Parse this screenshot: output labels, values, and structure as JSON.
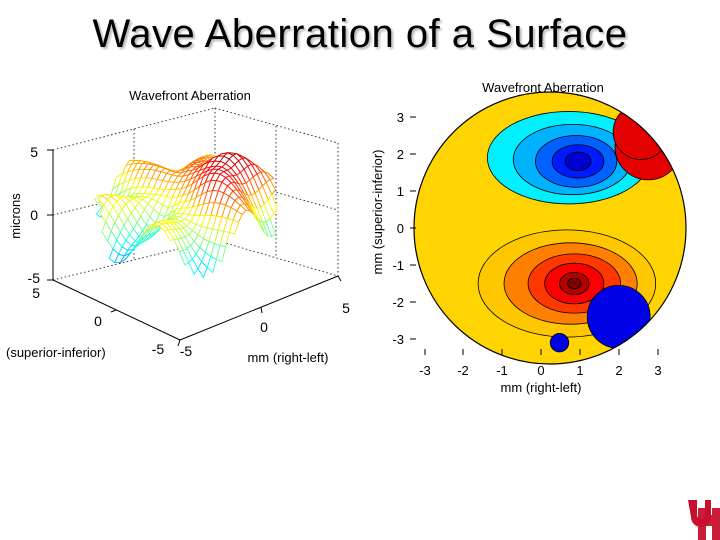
{
  "slide": {
    "title": "Wave Aberration of a Surface"
  },
  "colors": {
    "high": "#c00000",
    "mid": "#ffe000",
    "low": "#0010a0",
    "logo": "#c8102e"
  },
  "chart_data": [
    {
      "type": "surface",
      "title": "Wavefront Aberration",
      "zlabel": "microns",
      "xlabel": "mm (right-left)",
      "ylabel": "(superior-inferior)",
      "zticks": [
        "5",
        "0",
        "-5"
      ],
      "xticks": [
        "-5",
        "0",
        "5"
      ],
      "yticks": [
        "5",
        "0",
        "-5"
      ],
      "zlim": [
        -5,
        5
      ],
      "xlim": [
        -5,
        5
      ],
      "ylim": [
        -5,
        5
      ],
      "grid": true
    },
    {
      "type": "contour",
      "title": "Wavefront Aberration",
      "xlabel": "mm (right-left)",
      "ylabel": "mm (superior-inferior)",
      "xticks": [
        "-3",
        "-2",
        "-1",
        "0",
        "1",
        "2",
        "3"
      ],
      "yticks": [
        "3",
        "2",
        "1",
        "0",
        "-1",
        "-2",
        "-3"
      ],
      "xlim": [
        -3.5,
        3.5
      ],
      "ylim": [
        -3.5,
        3.5
      ],
      "pupil_radius": 3,
      "features": [
        {
          "kind": "minimum",
          "x": 1,
          "y": 1.8
        },
        {
          "kind": "maximum",
          "x": 0.9,
          "y": -1.5
        }
      ]
    }
  ]
}
